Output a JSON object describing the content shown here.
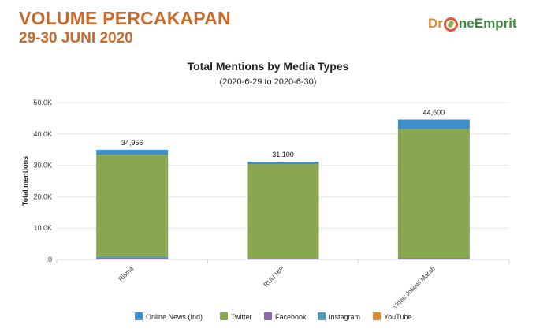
{
  "header": {
    "title": "VOLUME PERCAKAPAN",
    "subtitle": "29-30 JUNI 2020",
    "logo_part1": "Dr",
    "logo_part2": "neEmprit"
  },
  "chart_data": {
    "type": "bar",
    "stacked": true,
    "title": "Total Mentions by Media Types",
    "subtitle": "(2020-6-29 to 2020-6-30)",
    "xlabel": "",
    "ylabel": "Total mentions",
    "ylim": [
      0,
      50000
    ],
    "yticks": [
      0,
      10000,
      20000,
      30000,
      40000,
      50000
    ],
    "ytick_labels": [
      "0",
      "10.0K",
      "20.0K",
      "30.0K",
      "40.0K",
      "50.0K"
    ],
    "grid": true,
    "legend_position": "bottom",
    "categories": [
      "Risma",
      "RUU HIP",
      "Video Jokowi Marah"
    ],
    "totals": [
      34956,
      31100,
      44600
    ],
    "total_labels": [
      "34,956",
      "31,100",
      "44,600"
    ],
    "series": [
      {
        "name": "Online News (Ind)",
        "color": "#3d8fcb",
        "values": [
          1600,
          700,
          3100
        ]
      },
      {
        "name": "Twitter",
        "color": "#8aa652",
        "values": [
          32300,
          30000,
          41000
        ]
      },
      {
        "name": "Facebook",
        "color": "#8a6aa8",
        "values": [
          500,
          200,
          200
        ]
      },
      {
        "name": "Instagram",
        "color": "#4e98b4",
        "values": [
          500,
          200,
          300
        ]
      },
      {
        "name": "YouTube",
        "color": "#e0883a",
        "values": [
          56,
          0,
          0
        ]
      }
    ]
  }
}
